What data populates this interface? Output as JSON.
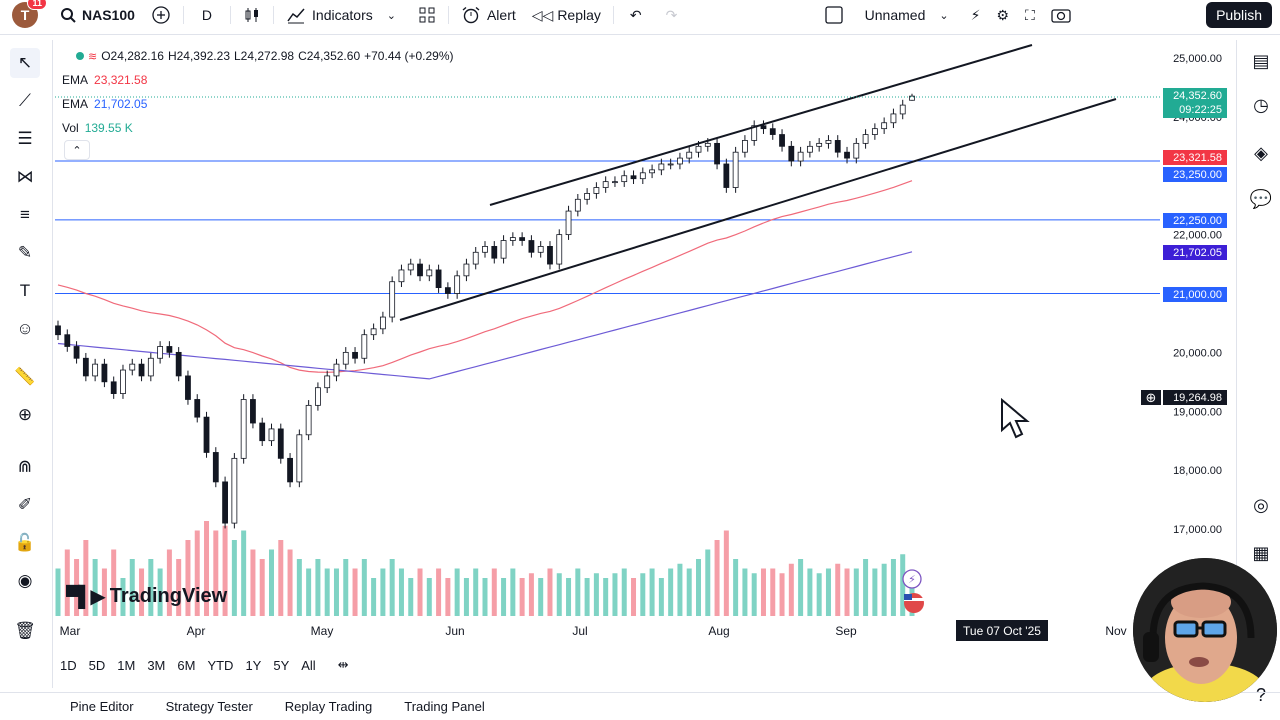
{
  "topbar": {
    "logo_letter": "T",
    "notif_count": "11",
    "symbol": "NAS100",
    "interval": "D",
    "indicators_label": "Indicators",
    "alert_label": "Alert",
    "replay_label": "Replay",
    "layout_name": "Unnamed",
    "publish_label": "Publish"
  },
  "legend": {
    "ohlc": [
      "O24,282.16",
      "H24,392.23",
      "L24,272.98",
      "C24,352.60",
      "+70.44 (+0.29%)"
    ],
    "ema1_label": "EMA",
    "ema1_value": "23,321.58",
    "ema2_label": "EMA",
    "ema2_value": "21,702.05",
    "vol_label": "Vol",
    "vol_value": "139.55 K"
  },
  "price_axis": {
    "ticks": [
      "25,000.00",
      "24,000.00",
      "22,000.00",
      "20,000.00",
      "19,000.00",
      "18,000.00",
      "17,000.00"
    ],
    "labels": [
      {
        "text": "24,352.60",
        "sub": "09:22:25",
        "color": "#22ab94"
      },
      {
        "text": "23,321.58",
        "color": "#f23645"
      },
      {
        "text": "23,250.00",
        "color": "#2962ff"
      },
      {
        "text": "22,250.00",
        "color": "#2962ff"
      },
      {
        "text": "21,702.05",
        "color": "#3d1fd6"
      },
      {
        "text": "21,000.00",
        "color": "#2962ff"
      },
      {
        "text": "19,264.98",
        "color": "#131722"
      }
    ]
  },
  "time_axis": {
    "months": [
      "Mar",
      "Apr",
      "May",
      "Jun",
      "Jul",
      "Aug",
      "Sep",
      "Nov"
    ],
    "crosshair_date": "Tue 07 Oct '25"
  },
  "timeframes": [
    "1D",
    "5D",
    "1M",
    "3M",
    "6M",
    "YTD",
    "1Y",
    "5Y",
    "All"
  ],
  "bottom_tabs": [
    "Pine Editor",
    "Strategy Tester",
    "Replay Trading",
    "Trading Panel"
  ],
  "watermark": "TradingView",
  "colors": {
    "up": "#22ab94",
    "down": "#f23645",
    "ema_fast": "#f06a7a",
    "ema_slow": "#6d5bd6",
    "hline": "#2962ff"
  },
  "chart_data": {
    "type": "candlestick",
    "symbol": "NAS100",
    "interval": "D",
    "ylim": [
      16500,
      25300
    ],
    "horizontal_levels": [
      23250,
      22250,
      21000
    ],
    "trend_channel": {
      "upper": [
        [
          21500,
          1
        ],
        [
          24800,
          1
        ]
      ],
      "note": "ascending channel"
    },
    "last": {
      "open": 24282.16,
      "high": 24392.23,
      "low": 24272.98,
      "close": 24352.6
    },
    "ema_fast_last": 23321.58,
    "ema_slow_last": 21702.05,
    "closes": [
      20300,
      20100,
      19900,
      19600,
      19800,
      19500,
      19300,
      19700,
      19800,
      19600,
      19900,
      20100,
      20000,
      19600,
      19200,
      18900,
      18300,
      17800,
      17100,
      18200,
      19200,
      18800,
      18500,
      18700,
      18200,
      17800,
      18600,
      19100,
      19400,
      19600,
      19800,
      20000,
      19900,
      20300,
      20400,
      20600,
      21200,
      21400,
      21500,
      21300,
      21400,
      21100,
      21000,
      21300,
      21500,
      21700,
      21800,
      21600,
      21900,
      21950,
      21900,
      21700,
      21800,
      21500,
      22000,
      22400,
      22600,
      22700,
      22800,
      22900,
      22900,
      23000,
      22950,
      23050,
      23100,
      23200,
      23200,
      23300,
      23400,
      23500,
      23550,
      23200,
      22800,
      23400,
      23600,
      23850,
      23800,
      23700,
      23500,
      23250,
      23400,
      23500,
      23550,
      23600,
      23400,
      23300,
      23550,
      23700,
      23800,
      23900,
      24050,
      24200,
      24352.6
    ],
    "volumes_rel": [
      0.5,
      0.7,
      0.6,
      0.8,
      0.6,
      0.5,
      0.7,
      0.4,
      0.6,
      0.5,
      0.6,
      0.5,
      0.7,
      0.6,
      0.8,
      0.9,
      1.0,
      0.9,
      0.95,
      0.8,
      0.9,
      0.7,
      0.6,
      0.7,
      0.8,
      0.7,
      0.6,
      0.5,
      0.6,
      0.5,
      0.5,
      0.6,
      0.5,
      0.6,
      0.4,
      0.5,
      0.6,
      0.5,
      0.4,
      0.5,
      0.4,
      0.5,
      0.4,
      0.5,
      0.4,
      0.5,
      0.4,
      0.5,
      0.4,
      0.5,
      0.4,
      0.45,
      0.4,
      0.5,
      0.45,
      0.4,
      0.5,
      0.4,
      0.45,
      0.4,
      0.45,
      0.5,
      0.4,
      0.45,
      0.5,
      0.4,
      0.5,
      0.55,
      0.5,
      0.6,
      0.7,
      0.8,
      0.9,
      0.6,
      0.5,
      0.45,
      0.5,
      0.5,
      0.45,
      0.55,
      0.6,
      0.5,
      0.45,
      0.5,
      0.55,
      0.5,
      0.5,
      0.6,
      0.5,
      0.55,
      0.6,
      0.65,
      0.4
    ]
  }
}
